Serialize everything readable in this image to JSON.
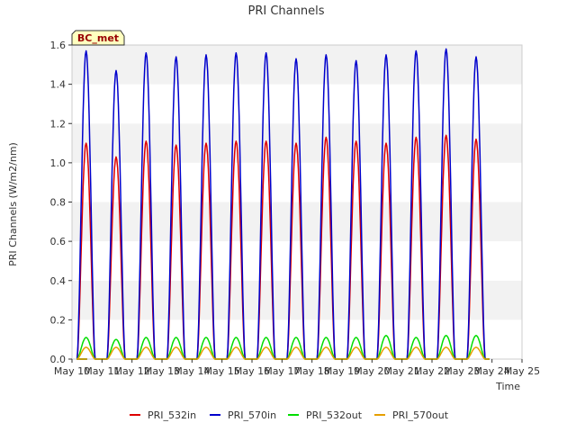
{
  "chart_data": {
    "type": "line",
    "title": "PRI Channels",
    "ylabel": "PRI Channels (W/m2/nm)",
    "xlabel": "Time",
    "xlim": [
      10,
      25
    ],
    "ylim": [
      0.0,
      1.6
    ],
    "x_ticks": [
      {
        "value": 10,
        "label": "May 10"
      },
      {
        "value": 11,
        "label": "May 11"
      },
      {
        "value": 12,
        "label": "May 12"
      },
      {
        "value": 13,
        "label": "May 13"
      },
      {
        "value": 14,
        "label": "May 14"
      },
      {
        "value": 15,
        "label": "May 15"
      },
      {
        "value": 16,
        "label": "May 16"
      },
      {
        "value": 17,
        "label": "May 17"
      },
      {
        "value": 18,
        "label": "May 18"
      },
      {
        "value": 19,
        "label": "May 19"
      },
      {
        "value": 20,
        "label": "May 20"
      },
      {
        "value": 21,
        "label": "May 21"
      },
      {
        "value": 22,
        "label": "May 22"
      },
      {
        "value": 23,
        "label": "May 23"
      },
      {
        "value": 24,
        "label": "May 24"
      },
      {
        "value": 25,
        "label": "May 25"
      }
    ],
    "y_ticks": [
      {
        "value": 0.0,
        "label": "0.0"
      },
      {
        "value": 0.2,
        "label": "0.2"
      },
      {
        "value": 0.4,
        "label": "0.4"
      },
      {
        "value": 0.6,
        "label": "0.6"
      },
      {
        "value": 0.8,
        "label": "0.8"
      },
      {
        "value": 1.0,
        "label": "1.0"
      },
      {
        "value": 1.2,
        "label": "1.2"
      },
      {
        "value": 1.4,
        "label": "1.4"
      },
      {
        "value": 1.6,
        "label": "1.6"
      }
    ],
    "annotation": "BC_met",
    "legend_position": "bottom",
    "grid": "horizontal bands",
    "day_peak_x": [
      10.47,
      11.47,
      12.47,
      13.47,
      14.47,
      15.47,
      16.47,
      17.47,
      18.47,
      19.47,
      20.47,
      21.47,
      22.47,
      23.47
    ],
    "series": [
      {
        "name": "PRI_532in",
        "color": "#dd0000",
        "peaks": [
          1.1,
          1.03,
          1.11,
          1.09,
          1.1,
          1.11,
          1.11,
          1.1,
          1.13,
          1.11,
          1.1,
          1.13,
          1.14,
          1.12
        ]
      },
      {
        "name": "PRI_570in",
        "color": "#0000cc",
        "peaks": [
          1.57,
          1.47,
          1.56,
          1.54,
          1.55,
          1.56,
          1.56,
          1.53,
          1.55,
          1.52,
          1.55,
          1.57,
          1.58,
          1.54
        ]
      },
      {
        "name": "PRI_532out",
        "color": "#00dd00",
        "peaks": [
          0.11,
          0.1,
          0.11,
          0.11,
          0.11,
          0.11,
          0.11,
          0.11,
          0.11,
          0.11,
          0.12,
          0.11,
          0.12,
          0.12
        ]
      },
      {
        "name": "PRI_570out",
        "color": "#e69f00",
        "peaks": [
          0.06,
          0.06,
          0.06,
          0.06,
          0.06,
          0.06,
          0.06,
          0.06,
          0.06,
          0.06,
          0.06,
          0.06,
          0.06,
          0.06
        ]
      }
    ]
  }
}
